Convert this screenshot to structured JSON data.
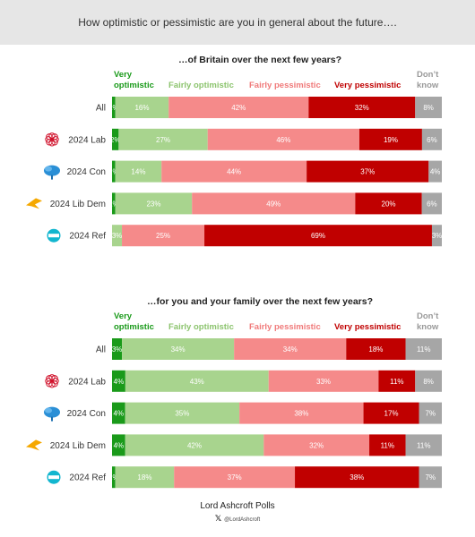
{
  "header": {
    "question": "How optimistic or pessimistic are you in general about the future…."
  },
  "legend": {
    "very_optimistic": "Very optimistic",
    "fairly_optimistic": "Fairly optimistic",
    "fairly_pessimistic": "Fairly pessimistic",
    "very_pessimistic": "Very pessimistic",
    "dont_know": "Don’t know"
  },
  "colors": {
    "very_optimistic": "#1a9a1a",
    "fairly_optimistic": "#a8d48e",
    "fairly_pessimistic": "#f58a8a",
    "very_pessimistic": "#c00000",
    "dont_know": "#a6a6a6"
  },
  "row_icons": [
    "",
    "labour-rose-icon",
    "conservative-tree-icon",
    "lib-dem-bird-icon",
    "reform-logo-icon"
  ],
  "chart_data": [
    {
      "type": "bar",
      "title": "…of Britain over the next few years?",
      "stacked": true,
      "categories": [
        "All",
        "2024 Lab",
        "2024 Con",
        "2024 Lib Dem",
        "2024 Ref"
      ],
      "series": [
        {
          "name": "Very optimistic",
          "values": [
            1,
            2,
            1,
            1,
            0
          ],
          "labels": [
            "1%",
            "2%",
            "1%",
            "1%",
            ""
          ]
        },
        {
          "name": "Fairly optimistic",
          "values": [
            16,
            27,
            14,
            23,
            3
          ],
          "labels": [
            "16%",
            "27%",
            "14%",
            "23%",
            "3%"
          ]
        },
        {
          "name": "Fairly pessimistic",
          "values": [
            42,
            46,
            44,
            49,
            25
          ],
          "labels": [
            "42%",
            "46%",
            "44%",
            "49%",
            "25%"
          ]
        },
        {
          "name": "Very pessimistic",
          "values": [
            32,
            19,
            37,
            20,
            69
          ],
          "labels": [
            "32%",
            "19%",
            "37%",
            "20%",
            "69%"
          ]
        },
        {
          "name": "Don’t know",
          "values": [
            8,
            6,
            4,
            6,
            3
          ],
          "labels": [
            "8%",
            "6%",
            "4%",
            "6%",
            "3%"
          ]
        }
      ]
    },
    {
      "type": "bar",
      "title": "…for you and your family over the next few years?",
      "stacked": true,
      "categories": [
        "All",
        "2024 Lab",
        "2024 Con",
        "2024 Lib Dem",
        "2024 Ref"
      ],
      "series": [
        {
          "name": "Very optimistic",
          "values": [
            3,
            4,
            4,
            4,
            1
          ],
          "labels": [
            "3%",
            "4%",
            "4%",
            "4%",
            "1%"
          ]
        },
        {
          "name": "Fairly optimistic",
          "values": [
            34,
            43,
            35,
            42,
            18
          ],
          "labels": [
            "34%",
            "43%",
            "35%",
            "42%",
            "18%"
          ]
        },
        {
          "name": "Fairly pessimistic",
          "values": [
            34,
            33,
            38,
            32,
            37
          ],
          "labels": [
            "34%",
            "33%",
            "38%",
            "32%",
            "37%"
          ]
        },
        {
          "name": "Very pessimistic",
          "values": [
            18,
            11,
            17,
            11,
            38
          ],
          "labels": [
            "18%",
            "11%",
            "17%",
            "11%",
            "38%"
          ]
        },
        {
          "name": "Don’t know",
          "values": [
            11,
            8,
            7,
            11,
            7
          ],
          "labels": [
            "11%",
            "8%",
            "7%",
            "11%",
            "7%"
          ]
        }
      ]
    }
  ],
  "footer": {
    "brand": "Lord Ashcroft Polls",
    "x_mark": "𝕏",
    "handle": "@LordAshcroft"
  }
}
